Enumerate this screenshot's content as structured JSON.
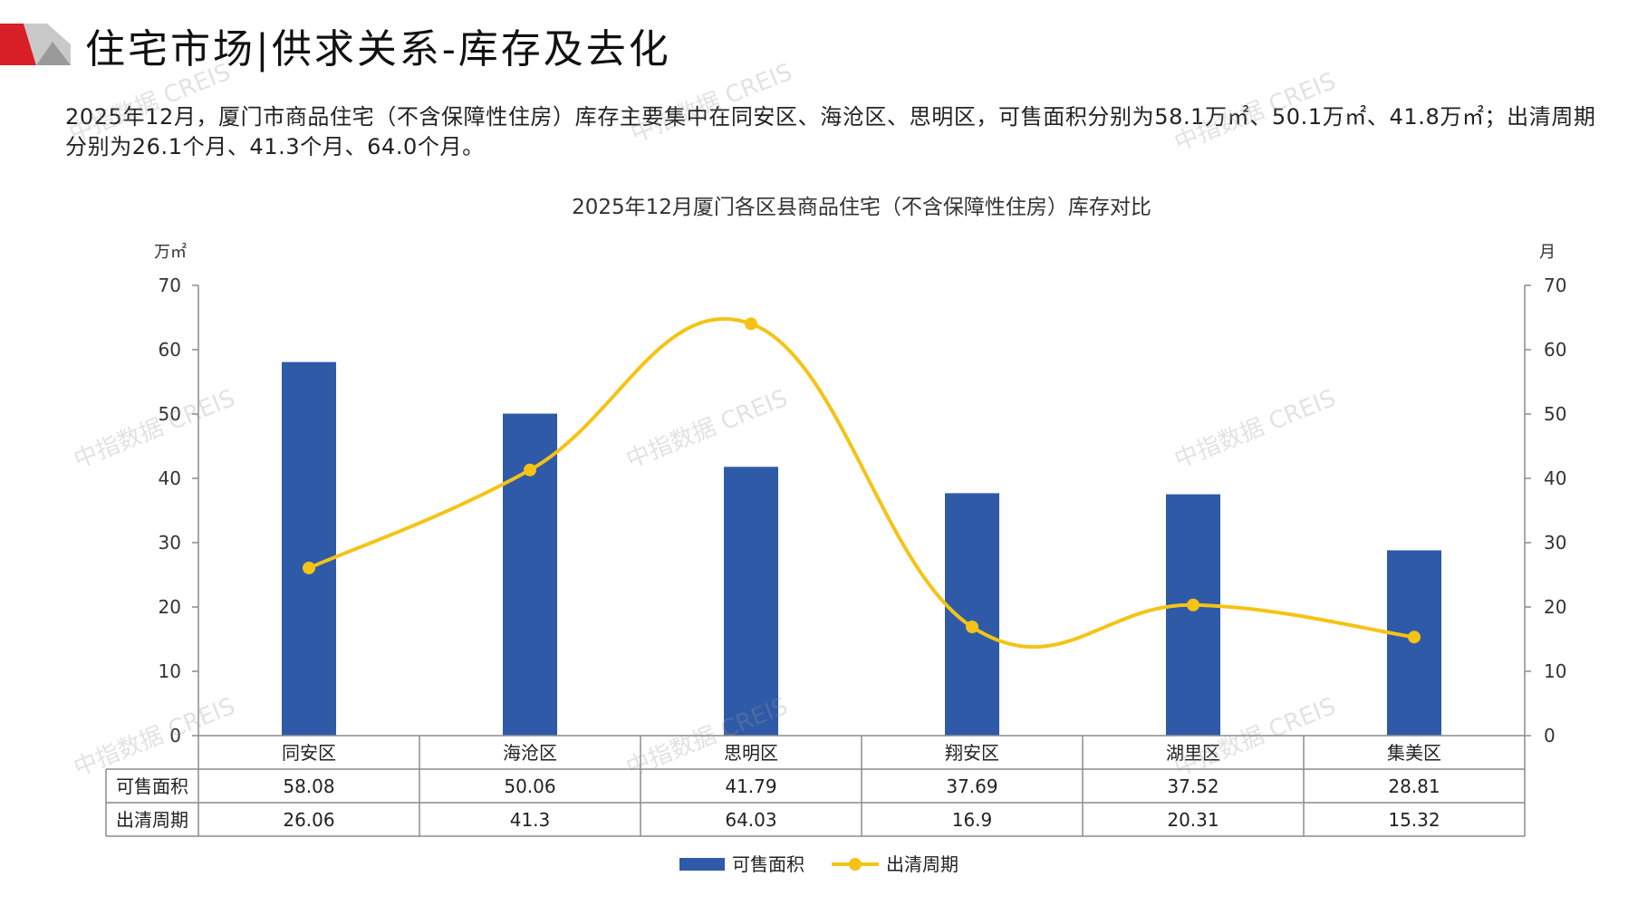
{
  "header": {
    "title": "住宅市场|供求关系-库存及去化",
    "logo_colors": [
      "#d81e27",
      "#b8b8b8"
    ]
  },
  "summary": "2025年12月，厦门市商品住宅（不含保障性住房）库存主要集中在同安区、海沧区、思明区，可售面积分别为58.1万㎡、50.1万㎡、41.8万㎡；出清周期分别为26.1个月、41.3个月、64.0个月。",
  "watermark_text": "中指数据 CREIS",
  "chart_data": {
    "type": "bar+line",
    "title": "2025年12月厦门各区县商品住宅（不含保障性住房）库存对比",
    "y_left_unit": "万㎡",
    "y_right_unit": "月",
    "ylim": [
      0,
      70
    ],
    "yticks": [
      0,
      10,
      20,
      30,
      40,
      50,
      60,
      70
    ],
    "categories": [
      "同安区",
      "海沧区",
      "思明区",
      "翔安区",
      "湖里区",
      "集美区"
    ],
    "series": [
      {
        "name": "可售面积",
        "type": "bar",
        "axis": "left",
        "color": "#2e5aa8",
        "values": [
          58.08,
          50.06,
          41.79,
          37.69,
          37.52,
          28.81
        ]
      },
      {
        "name": "出清周期",
        "type": "line",
        "axis": "right",
        "color": "#f5c316",
        "values": [
          26.06,
          41.3,
          64.03,
          16.9,
          20.31,
          15.32
        ]
      }
    ],
    "data_table": {
      "rows": [
        {
          "label": "可售面积",
          "cells": [
            "58.08",
            "50.06",
            "41.79",
            "37.69",
            "37.52",
            "28.81"
          ]
        },
        {
          "label": "出清周期",
          "cells": [
            "26.06",
            "41.3",
            "64.03",
            "16.9",
            "20.31",
            "15.32"
          ]
        }
      ]
    },
    "legend": {
      "placement": "bottom-center"
    }
  }
}
